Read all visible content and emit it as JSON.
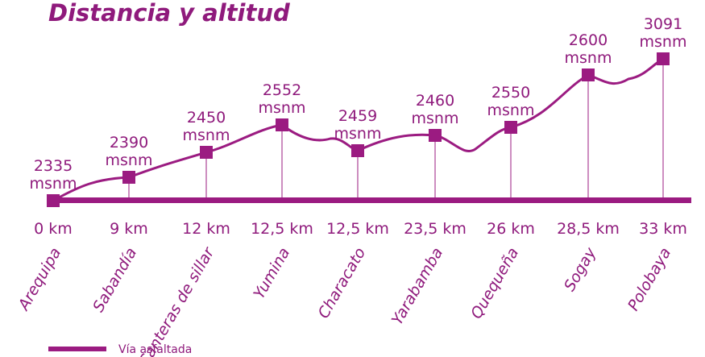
{
  "title": "Distancia y altitud",
  "unit": "msnm",
  "stations": [
    {
      "distance": "0 km",
      "name": "Arequipa",
      "altitude": 2335
    },
    {
      "distance": "9 km",
      "name": "Sabandía",
      "altitude": 2390
    },
    {
      "distance": "12 km",
      "name": "Canteras de sillar",
      "altitude": 2450
    },
    {
      "distance": "12,5 km",
      "name": "Yumina",
      "altitude": 2552
    },
    {
      "distance": "12,5 km",
      "name": "Characato",
      "altitude": 2459
    },
    {
      "distance": "23,5 km",
      "name": "Yarabamba",
      "altitude": 2460
    },
    {
      "distance": "26 km",
      "name": "Quequeña",
      "altitude": 2550
    },
    {
      "distance": "28,5 km",
      "name": "Sogay",
      "altitude": 2600
    },
    {
      "distance": "33 km",
      "name": "Polobaya",
      "altitude": 3091
    }
  ],
  "legend": "Vía asfaltada"
}
